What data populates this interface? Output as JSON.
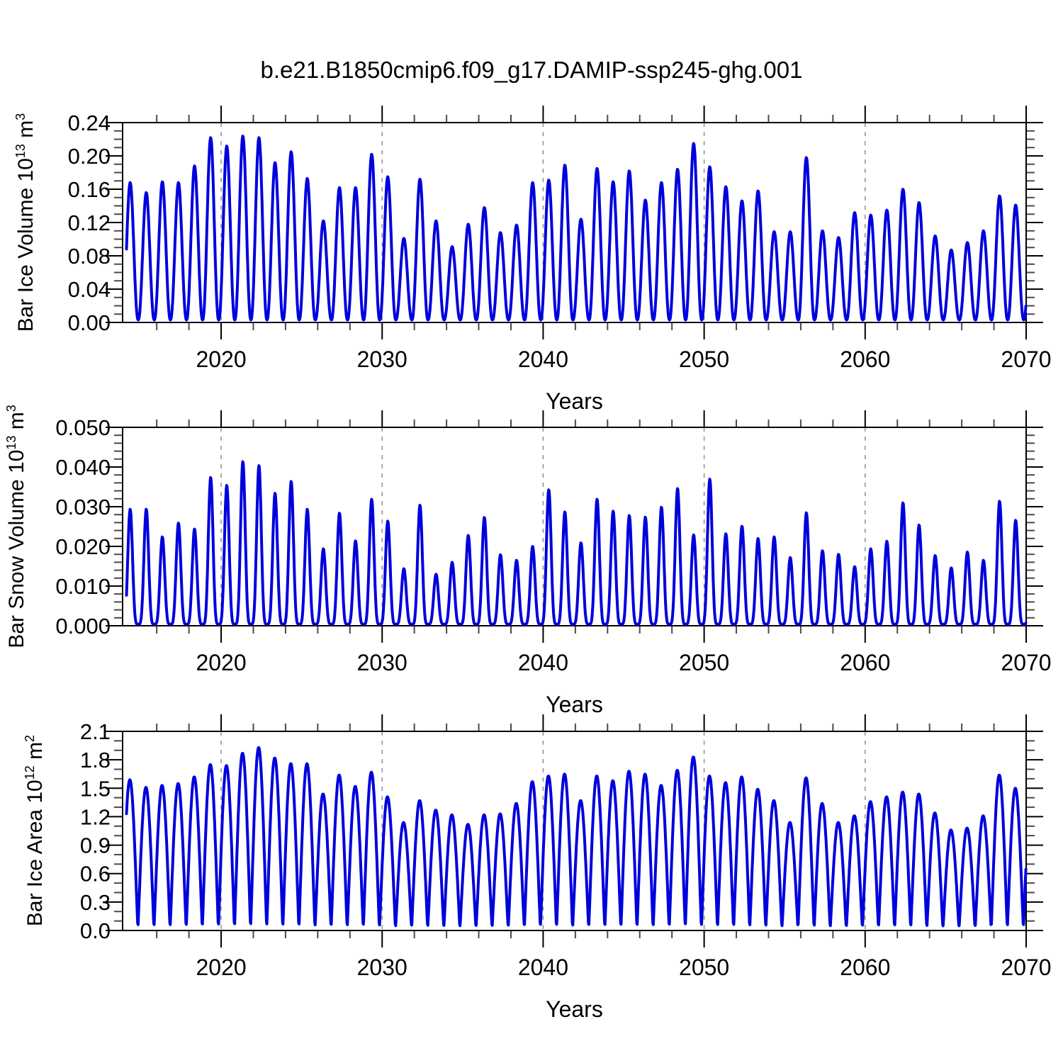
{
  "title": "b.e21.B1850cmip6.f09_g17.DAMIP-ssp245-ghg.001",
  "line_color": "#0000dd",
  "x_axis": {
    "label": "Years",
    "tick_years": [
      2020,
      2030,
      2040,
      2050,
      2060,
      2070
    ],
    "minor_step_years": 2,
    "gridline_years": [
      2020,
      2030,
      2040,
      2050,
      2060
    ],
    "range_years": [
      2013.88,
      2070
    ]
  },
  "chart_data": [
    {
      "id": "ice-volume",
      "type": "line",
      "ylabel": "Bar Ice Volume 10^13 m^3",
      "ylabel_parts": {
        "prefix": "Bar Ice Volume 10",
        "power": "13",
        "unit": " m",
        "unit_power": "3"
      },
      "xlabel": "Years",
      "ylim": [
        0,
        0.24
      ],
      "y_major_step": 0.04,
      "y_minor_step": 0.01,
      "ytick_labels": [
        "0.00",
        "0.04",
        "0.08",
        "0.12",
        "0.16",
        "0.20",
        "0.24"
      ],
      "grid": "dashed-vertical-decades",
      "legend": "none",
      "seasonal_model": {
        "peak_month": 0.35,
        "sharpness": 1.15,
        "trough_value": 0.003
      },
      "years": [
        2014,
        2015,
        2016,
        2017,
        2018,
        2019,
        2020,
        2021,
        2022,
        2023,
        2024,
        2025,
        2026,
        2027,
        2028,
        2029,
        2030,
        2031,
        2032,
        2033,
        2034,
        2035,
        2036,
        2037,
        2038,
        2039,
        2040,
        2041,
        2042,
        2043,
        2044,
        2045,
        2046,
        2047,
        2048,
        2049,
        2050,
        2051,
        2052,
        2053,
        2054,
        2055,
        2056,
        2057,
        2058,
        2059,
        2060,
        2061,
        2062,
        2063,
        2064,
        2065,
        2066,
        2067,
        2068,
        2069
      ],
      "annual_peak_values": [
        0.165,
        0.153,
        0.166,
        0.165,
        0.185,
        0.219,
        0.209,
        0.221,
        0.219,
        0.189,
        0.202,
        0.17,
        0.119,
        0.159,
        0.159,
        0.199,
        0.172,
        0.098,
        0.169,
        0.119,
        0.088,
        0.115,
        0.135,
        0.105,
        0.114,
        0.165,
        0.168,
        0.186,
        0.121,
        0.182,
        0.166,
        0.179,
        0.144,
        0.165,
        0.181,
        0.212,
        0.184,
        0.16,
        0.143,
        0.155,
        0.106,
        0.106,
        0.195,
        0.107,
        0.099,
        0.129,
        0.126,
        0.132,
        0.157,
        0.141,
        0.101,
        0.084,
        0.093,
        0.107,
        0.149,
        0.138
      ]
    },
    {
      "id": "snow-volume",
      "type": "line",
      "ylabel": "Bar Snow Volume 10^13 m^3",
      "ylabel_parts": {
        "prefix": "Bar Snow Volume 10",
        "power": "13",
        "unit": " m",
        "unit_power": "3"
      },
      "xlabel": "Years",
      "ylim": [
        0,
        0.05
      ],
      "y_major_step": 0.01,
      "y_minor_step": 0.002,
      "ytick_labels": [
        "0.000",
        "0.010",
        "0.020",
        "0.030",
        "0.040",
        "0.050"
      ],
      "grid": "dashed-vertical-decades",
      "legend": "none",
      "seasonal_model": {
        "peak_month": 0.35,
        "sharpness": 2.4,
        "trough_value": 0.0004
      },
      "years": [
        2014,
        2015,
        2016,
        2017,
        2018,
        2019,
        2020,
        2021,
        2022,
        2023,
        2024,
        2025,
        2026,
        2027,
        2028,
        2029,
        2030,
        2031,
        2032,
        2033,
        2034,
        2035,
        2036,
        2037,
        2038,
        2039,
        2040,
        2041,
        2042,
        2043,
        2044,
        2045,
        2046,
        2047,
        2048,
        2049,
        2050,
        2051,
        2052,
        2053,
        2054,
        2055,
        2056,
        2057,
        2058,
        2059,
        2060,
        2061,
        2062,
        2063,
        2064,
        2065,
        2066,
        2067,
        2068,
        2069
      ],
      "annual_peak_values": [
        0.029,
        0.029,
        0.022,
        0.0255,
        0.024,
        0.037,
        0.035,
        0.041,
        0.04,
        0.033,
        0.036,
        0.029,
        0.019,
        0.028,
        0.021,
        0.0315,
        0.026,
        0.014,
        0.03,
        0.0126,
        0.0156,
        0.0224,
        0.0269,
        0.0175,
        0.0161,
        0.0196,
        0.0339,
        0.0283,
        0.0205,
        0.0315,
        0.0285,
        0.0274,
        0.027,
        0.0295,
        0.0342,
        0.0225,
        0.0366,
        0.0228,
        0.0247,
        0.0216,
        0.022,
        0.0168,
        0.0281,
        0.0185,
        0.0176,
        0.0145,
        0.019,
        0.0209,
        0.0306,
        0.025,
        0.0173,
        0.0142,
        0.0182,
        0.0161,
        0.031,
        0.0262
      ]
    },
    {
      "id": "ice-area",
      "type": "line",
      "ylabel": "Bar Ice Area 10^12 m^2",
      "ylabel_parts": {
        "prefix": "Bar Ice Area 10",
        "power": "12",
        "unit": " m",
        "unit_power": "2"
      },
      "xlabel": "Years",
      "ylim": [
        0,
        2.1
      ],
      "y_major_step": 0.3,
      "y_minor_step": 0.1,
      "ytick_labels": [
        "0.0",
        "0.3",
        "0.6",
        "0.9",
        "1.2",
        "1.5",
        "1.8",
        "2.1"
      ],
      "grid": "dashed-vertical-decades",
      "legend": "none",
      "seasonal_model": {
        "peak_month": 0.33,
        "sharpness": 0.55,
        "trough_value": 0.02
      },
      "years": [
        2014,
        2015,
        2016,
        2017,
        2018,
        2019,
        2020,
        2021,
        2022,
        2023,
        2024,
        2025,
        2026,
        2027,
        2028,
        2029,
        2030,
        2031,
        2032,
        2033,
        2034,
        2035,
        2036,
        2037,
        2038,
        2039,
        2040,
        2041,
        2042,
        2043,
        2044,
        2045,
        2046,
        2047,
        2048,
        2049,
        2050,
        2051,
        2052,
        2053,
        2054,
        2055,
        2056,
        2057,
        2058,
        2059,
        2060,
        2061,
        2062,
        2063,
        2064,
        2065,
        2066,
        2067,
        2068,
        2069
      ],
      "annual_peak_values": [
        1.57,
        1.49,
        1.51,
        1.53,
        1.6,
        1.73,
        1.72,
        1.85,
        1.91,
        1.8,
        1.74,
        1.74,
        1.42,
        1.62,
        1.5,
        1.65,
        1.39,
        1.12,
        1.35,
        1.25,
        1.2,
        1.1,
        1.2,
        1.21,
        1.32,
        1.55,
        1.61,
        1.63,
        1.35,
        1.61,
        1.56,
        1.66,
        1.63,
        1.51,
        1.67,
        1.81,
        1.61,
        1.54,
        1.6,
        1.47,
        1.35,
        1.12,
        1.59,
        1.32,
        1.12,
        1.19,
        1.34,
        1.39,
        1.44,
        1.42,
        1.22,
        1.04,
        1.06,
        1.19,
        1.62,
        1.48
      ]
    }
  ]
}
